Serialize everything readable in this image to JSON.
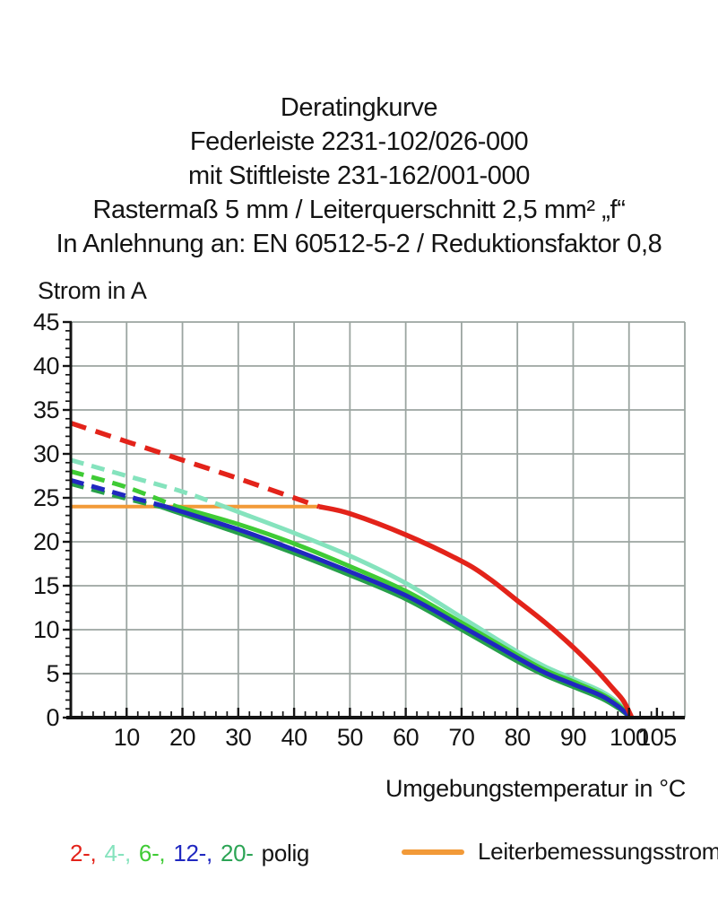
{
  "header": {
    "lines": [
      "Deratingkurve",
      "Federleiste 2231-102/026-000",
      "mit Stiftleiste 231-162/001-000",
      "Rastermaß 5 mm / Leiterquerschnitt 2,5 mm² „f“",
      "In Anlehnung an: EN 60512-5-2 / Reduktionsfaktor 0,8"
    ]
  },
  "chart_data": {
    "type": "line",
    "title": "Deratingkurve",
    "ylabel": "Strom in A",
    "xlabel": "Umgebungstemperatur in °C",
    "xlim": [
      0,
      110
    ],
    "ylim": [
      0,
      45
    ],
    "x_major_ticks": [
      10,
      20,
      30,
      40,
      50,
      60,
      70,
      80,
      90,
      100,
      105
    ],
    "x_minor_step": 2,
    "y_major_ticks": [
      0,
      5,
      10,
      15,
      20,
      25,
      30,
      35,
      40,
      45
    ],
    "y_minor_step": 1,
    "grid": {
      "x_step": 10,
      "y_step": 5,
      "color": "#9ba5a1",
      "width": 1.8
    },
    "axis_color": "#141414",
    "legend_position": "bottom",
    "rated_current_line": {
      "value": 24,
      "x_start": 0,
      "x_end": 44.3,
      "color": "#f29a38",
      "label": "Leiterbemessungsstrom"
    },
    "series": [
      {
        "name": "4-polig",
        "poles": 4,
        "color": "#85e3bd",
        "dash_until": 27.5,
        "points": [
          [
            0,
            29.3
          ],
          [
            10,
            27.5
          ],
          [
            20,
            25.7
          ],
          [
            27.5,
            24
          ],
          [
            30,
            23.4
          ],
          [
            40,
            21.0
          ],
          [
            50,
            18.4
          ],
          [
            60,
            15.3
          ],
          [
            70,
            11.4
          ],
          [
            80,
            7.5
          ],
          [
            85,
            5.8
          ],
          [
            90,
            4.4
          ],
          [
            95,
            3.0
          ],
          [
            98,
            1.7
          ],
          [
            100.4,
            0
          ]
        ]
      },
      {
        "name": "6-polig",
        "poles": 6,
        "color": "#3fcb35",
        "dash_until": 19,
        "points": [
          [
            0,
            28.0
          ],
          [
            10,
            26.2
          ],
          [
            19,
            24
          ],
          [
            30,
            22.0
          ],
          [
            40,
            19.8
          ],
          [
            50,
            17.2
          ],
          [
            60,
            14.4
          ],
          [
            70,
            10.8
          ],
          [
            80,
            7.1
          ],
          [
            85,
            5.4
          ],
          [
            90,
            4.1
          ],
          [
            95,
            2.7
          ],
          [
            98,
            1.5
          ],
          [
            100.35,
            0
          ]
        ]
      },
      {
        "name": "20-polig",
        "poles": 20,
        "color": "#27a04a",
        "dash_until": 16,
        "points": [
          [
            0,
            26.6
          ],
          [
            10,
            24.9
          ],
          [
            16,
            24
          ],
          [
            30,
            21.0
          ],
          [
            40,
            18.7
          ],
          [
            50,
            16.2
          ],
          [
            60,
            13.5
          ],
          [
            70,
            10.0
          ],
          [
            80,
            6.4
          ],
          [
            85,
            4.8
          ],
          [
            90,
            3.5
          ],
          [
            95,
            2.2
          ],
          [
            98,
            1.1
          ],
          [
            100.3,
            0
          ]
        ]
      },
      {
        "name": "12-polig",
        "poles": 12,
        "color": "#2028c0",
        "dash_until": 17,
        "points": [
          [
            0,
            27.0
          ],
          [
            10,
            25.2
          ],
          [
            17,
            24
          ],
          [
            30,
            21.4
          ],
          [
            40,
            19.1
          ],
          [
            50,
            16.6
          ],
          [
            60,
            13.9
          ],
          [
            70,
            10.4
          ],
          [
            80,
            6.8
          ],
          [
            85,
            5.1
          ],
          [
            90,
            3.8
          ],
          [
            95,
            2.5
          ],
          [
            98,
            1.3
          ],
          [
            100.3,
            0
          ]
        ]
      },
      {
        "name": "2-polig",
        "poles": 2,
        "color": "#e3231a",
        "dash_until": 44.5,
        "points": [
          [
            0,
            33.5
          ],
          [
            10,
            31.4
          ],
          [
            20,
            29.3
          ],
          [
            30,
            27.2
          ],
          [
            40,
            25.0
          ],
          [
            44.5,
            24.0
          ],
          [
            50,
            23.2
          ],
          [
            60,
            20.8
          ],
          [
            70,
            17.8
          ],
          [
            75,
            15.8
          ],
          [
            80,
            13.3
          ],
          [
            85,
            10.8
          ],
          [
            90,
            8.0
          ],
          [
            94,
            5.5
          ],
          [
            97,
            3.4
          ],
          [
            99,
            1.9
          ],
          [
            100.5,
            0
          ]
        ]
      }
    ]
  },
  "pole_legend": {
    "items": [
      {
        "label": "2-,",
        "color": "#e3231a"
      },
      {
        "label": "4-,",
        "color": "#85e3bd"
      },
      {
        "label": "6-,",
        "color": "#3fcb35"
      },
      {
        "label": "12-,",
        "color": "#2028c0"
      },
      {
        "label": "20-",
        "color": "#2ca455"
      }
    ],
    "suffix": "polig"
  }
}
